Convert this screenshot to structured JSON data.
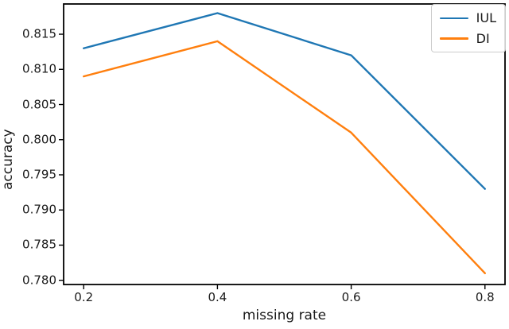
{
  "figure": {
    "background": "#ffffff"
  },
  "chart_data": {
    "type": "line",
    "title": "",
    "xlabel": "missing rate",
    "ylabel": "accuracy",
    "x": [
      0.2,
      0.4,
      0.6,
      0.8
    ],
    "series": [
      {
        "name": "IUL",
        "color": "#1f77b4",
        "values": [
          0.813,
          0.818,
          0.812,
          0.793
        ]
      },
      {
        "name": "DI",
        "color": "#ff7f0e",
        "values": [
          0.809,
          0.814,
          0.801,
          0.781
        ]
      }
    ],
    "xlim": [
      0.17,
      0.83
    ],
    "ylim": [
      0.7794,
      0.8193
    ],
    "xticks": [
      0.2,
      0.4,
      0.6,
      0.8
    ],
    "xtick_labels": [
      "0.2",
      "0.4",
      "0.6",
      "0.8"
    ],
    "yticks": [
      0.78,
      0.785,
      0.79,
      0.795,
      0.8,
      0.805,
      0.81,
      0.815
    ],
    "ytick_labels": [
      "0.780",
      "0.785",
      "0.790",
      "0.795",
      "0.800",
      "0.805",
      "0.810",
      "0.815"
    ],
    "grid": false,
    "legend": {
      "position": "upper right",
      "entries": [
        "IUL",
        "DI"
      ]
    }
  },
  "colors": {
    "spine": "#000000",
    "tick": "#000000",
    "tick_label": "#1a1a1a",
    "legend_border": "#cccccc"
  }
}
